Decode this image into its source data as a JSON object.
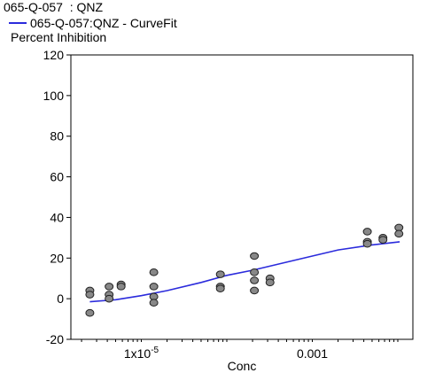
{
  "header": {
    "title": "065-Q-057  : QNZ"
  },
  "legend": {
    "items": [
      {
        "label": "065-Q-057:QNZ - CurveFit",
        "color": "#2b2bdc",
        "swatch": "line"
      }
    ]
  },
  "chart_data": {
    "type": "scatter",
    "title": "065-Q-057  : QNZ",
    "xlabel": "Conc",
    "ylabel": "Percent Inhibition",
    "xscale": "log",
    "xlim": [
      1.5e-06,
      0.015
    ],
    "ylim": [
      -20,
      120
    ],
    "grid": false,
    "legend_position": "top-left",
    "xticks": [
      {
        "value": 1e-05,
        "label": "1x10",
        "sup": "-5"
      },
      {
        "value": 0.001,
        "label": "0.001",
        "sup": ""
      }
    ],
    "yticks": [
      -20,
      0,
      20,
      40,
      60,
      80,
      100,
      120
    ],
    "series": [
      {
        "kind": "points",
        "color": "#888888",
        "points": [
          {
            "x": 2.5e-06,
            "y": 4
          },
          {
            "x": 2.5e-06,
            "y": 2
          },
          {
            "x": 2.5e-06,
            "y": -7
          },
          {
            "x": 4.2e-06,
            "y": 6
          },
          {
            "x": 4.2e-06,
            "y": 2
          },
          {
            "x": 4.2e-06,
            "y": 0
          },
          {
            "x": 5.8e-06,
            "y": 7
          },
          {
            "x": 5.8e-06,
            "y": 6
          },
          {
            "x": 1.4e-05,
            "y": 13
          },
          {
            "x": 1.4e-05,
            "y": 6
          },
          {
            "x": 1.4e-05,
            "y": 1
          },
          {
            "x": 1.4e-05,
            "y": -2
          },
          {
            "x": 8.4e-05,
            "y": 12
          },
          {
            "x": 8.4e-05,
            "y": 6
          },
          {
            "x": 8.4e-05,
            "y": 5
          },
          {
            "x": 0.00021,
            "y": 21
          },
          {
            "x": 0.00021,
            "y": 13
          },
          {
            "x": 0.00021,
            "y": 9
          },
          {
            "x": 0.00021,
            "y": 4
          },
          {
            "x": 0.00032,
            "y": 10
          },
          {
            "x": 0.00032,
            "y": 8
          },
          {
            "x": 0.0044,
            "y": 33
          },
          {
            "x": 0.0044,
            "y": 28
          },
          {
            "x": 0.0044,
            "y": 27
          },
          {
            "x": 0.0067,
            "y": 30
          },
          {
            "x": 0.0067,
            "y": 29
          },
          {
            "x": 0.0103,
            "y": 35
          },
          {
            "x": 0.0103,
            "y": 32
          }
        ]
      },
      {
        "name": "065-Q-057:QNZ - CurveFit",
        "kind": "line",
        "color": "#2b2bdc",
        "points": [
          {
            "x": 2.5e-06,
            "y": -1.5
          },
          {
            "x": 5e-06,
            "y": -0.5
          },
          {
            "x": 1e-05,
            "y": 1.5
          },
          {
            "x": 2e-05,
            "y": 4
          },
          {
            "x": 5e-05,
            "y": 8
          },
          {
            "x": 0.0001,
            "y": 11.5
          },
          {
            "x": 0.0002,
            "y": 14
          },
          {
            "x": 0.0005,
            "y": 18
          },
          {
            "x": 0.001,
            "y": 21
          },
          {
            "x": 0.002,
            "y": 24
          },
          {
            "x": 0.005,
            "y": 26.5
          },
          {
            "x": 0.0105,
            "y": 28
          }
        ]
      }
    ]
  }
}
